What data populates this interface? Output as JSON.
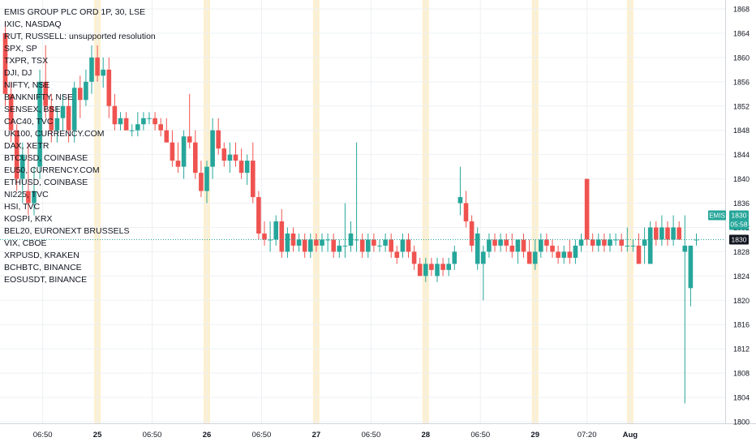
{
  "symbol_title": "EMIS GROUP PLC ORD 1P, 30, LSE",
  "compare_symbols": [
    "IXIC, NASDAQ",
    "RUT, RUSSELL: unsupported resolution",
    "SPX, SP",
    "TXPR, TSX",
    "DJI, DJ",
    "NIFTY, NSE",
    "BANKNIFTY, NSE",
    "SENSEX, BSE",
    "CAC40, TVC",
    "UK100, CURRENCY.COM",
    "DAX, XETR",
    "BTCUSD, COINBASE",
    "EU50, CURRENCY.COM",
    "ETHUSD, COINBASE",
    "NI225, TVC",
    "HSI, TVC",
    "KOSPI, KRX",
    "BEL20, EURONEXT BRUSSELS",
    "VIX, CBOE",
    "XRPUSD, KRAKEN",
    "BCHBTC, BINANCE",
    "EOSUSDT, BINANCE"
  ],
  "price_badge": {
    "symbol": "EMIS",
    "price": "1830",
    "countdown": "05:58",
    "last": "1830",
    "color": "#26a69a"
  },
  "colors": {
    "up": "#26a69a",
    "down": "#ef5350",
    "session_band": "#fdf0cf",
    "grid": "#eef0f3",
    "axis_text": "#131722"
  },
  "chart_data": {
    "type": "candlestick",
    "ylim": [
      1800,
      1869
    ],
    "y_ticks": [
      1800,
      1804,
      1808,
      1812,
      1816,
      1820,
      1824,
      1828,
      1832,
      1836,
      1840,
      1844,
      1848,
      1852,
      1856,
      1860,
      1864,
      1868
    ],
    "x_ticks": [
      {
        "label": "06:50",
        "bar": 6.5,
        "bold": false
      },
      {
        "label": "25",
        "bar": 16,
        "bold": true
      },
      {
        "label": "06:50",
        "bar": 25.5,
        "bold": false
      },
      {
        "label": "26",
        "bar": 35,
        "bold": true
      },
      {
        "label": "06:50",
        "bar": 44.5,
        "bold": false
      },
      {
        "label": "27",
        "bar": 54,
        "bold": true
      },
      {
        "label": "06:50",
        "bar": 63.5,
        "bold": false
      },
      {
        "label": "28",
        "bar": 73,
        "bold": true
      },
      {
        "label": "06:50",
        "bar": 82.5,
        "bold": false
      },
      {
        "label": "29",
        "bar": 92,
        "bold": true
      },
      {
        "label": "07:20",
        "bar": 101,
        "bold": false
      },
      {
        "label": "Aug",
        "bar": 108.5,
        "bold": true
      }
    ],
    "session_bars": [
      16,
      35,
      54,
      73,
      92,
      108.5
    ],
    "last_price": 1830,
    "candles": [
      [
        1864,
        1866,
        1852,
        1854
      ],
      [
        1854,
        1856,
        1846,
        1848
      ],
      [
        1848,
        1849,
        1838,
        1840
      ],
      [
        1840,
        1846,
        1836,
        1844
      ],
      [
        1838,
        1846,
        1834,
        1836
      ],
      [
        1836,
        1842,
        1834,
        1838
      ],
      [
        1842,
        1858,
        1840,
        1856
      ],
      [
        1856,
        1862,
        1850,
        1852
      ],
      [
        1852,
        1854,
        1846,
        1848
      ],
      [
        1848,
        1852,
        1846,
        1850
      ],
      [
        1850,
        1854,
        1848,
        1852
      ],
      [
        1852,
        1854,
        1846,
        1848
      ],
      [
        1848,
        1856,
        1846,
        1855
      ],
      [
        1855,
        1857,
        1850,
        1853
      ],
      [
        1853,
        1858,
        1852,
        1856
      ],
      [
        1856,
        1862,
        1854,
        1860
      ],
      [
        1860,
        1862,
        1856,
        1857
      ],
      [
        1857,
        1860,
        1855,
        1858
      ],
      [
        1858,
        1860,
        1850,
        1852
      ],
      [
        1852,
        1854,
        1848,
        1849
      ],
      [
        1849,
        1851,
        1848,
        1850
      ],
      [
        1850,
        1851,
        1848,
        1848
      ],
      [
        1848,
        1849,
        1847,
        1848
      ],
      [
        1848,
        1851,
        1847,
        1849
      ],
      [
        1849,
        1851,
        1848,
        1850
      ],
      [
        1850,
        1851,
        1849,
        1850
      ],
      [
        1850,
        1851,
        1848,
        1849
      ],
      [
        1849,
        1850,
        1847,
        1848
      ],
      [
        1848,
        1850,
        1846,
        1846
      ],
      [
        1846,
        1848,
        1842,
        1843
      ],
      [
        1843,
        1846,
        1841,
        1842
      ],
      [
        1842,
        1848,
        1840,
        1847
      ],
      [
        1847,
        1854,
        1845,
        1846
      ],
      [
        1846,
        1848,
        1840,
        1841
      ],
      [
        1841,
        1843,
        1837,
        1838
      ],
      [
        1838,
        1843,
        1836,
        1842
      ],
      [
        1842,
        1850,
        1840,
        1848
      ],
      [
        1848,
        1850,
        1844,
        1845
      ],
      [
        1845,
        1846,
        1842,
        1843
      ],
      [
        1843,
        1846,
        1841,
        1844
      ],
      [
        1844,
        1846,
        1842,
        1843
      ],
      [
        1843,
        1845,
        1840,
        1841
      ],
      [
        1841,
        1844,
        1839,
        1843
      ],
      [
        1843,
        1846,
        1836,
        1837
      ],
      [
        1837,
        1838,
        1830,
        1831
      ],
      [
        1831,
        1833,
        1829,
        1830
      ],
      [
        1830,
        1833,
        1828,
        1830
      ],
      [
        1830,
        1834,
        1829,
        1833
      ],
      [
        1833,
        1835,
        1827,
        1828
      ],
      [
        1828,
        1832,
        1827,
        1831
      ],
      [
        1831,
        1832,
        1828,
        1829
      ],
      [
        1829,
        1831,
        1828,
        1830
      ],
      [
        1830,
        1831,
        1827,
        1828
      ],
      [
        1828,
        1831,
        1827,
        1830
      ],
      [
        1830,
        1831,
        1828,
        1829
      ],
      [
        1829,
        1831,
        1828,
        1830
      ],
      [
        1830,
        1831,
        1828,
        1830
      ],
      [
        1830,
        1831,
        1827,
        1828
      ],
      [
        1828,
        1830,
        1827,
        1829
      ],
      [
        1829,
        1836,
        1827,
        1829
      ],
      [
        1829,
        1833,
        1828,
        1831
      ],
      [
        1830,
        1846,
        1828,
        1830
      ],
      [
        1830,
        1831,
        1827,
        1828
      ],
      [
        1828,
        1831,
        1827,
        1830
      ],
      [
        1830,
        1831,
        1828,
        1829
      ],
      [
        1829,
        1830,
        1828,
        1829
      ],
      [
        1829,
        1831,
        1828,
        1830
      ],
      [
        1830,
        1831,
        1827,
        1828
      ],
      [
        1828,
        1829,
        1826,
        1827
      ],
      [
        1828,
        1831,
        1827,
        1830
      ],
      [
        1830,
        1831,
        1827,
        1828
      ],
      [
        1828,
        1829,
        1825,
        1826
      ],
      [
        1826,
        1827,
        1824,
        1824
      ],
      [
        1824,
        1827,
        1823,
        1826
      ],
      [
        1826,
        1827,
        1824,
        1825
      ],
      [
        1824,
        1827,
        1823,
        1826
      ],
      [
        1826,
        1827,
        1824,
        1825
      ],
      [
        1825,
        1827,
        1824,
        1826
      ],
      [
        1826,
        1829,
        1825,
        1828
      ],
      [
        1836,
        1842,
        1834,
        1837
      ],
      [
        1836,
        1838,
        1832,
        1833
      ],
      [
        1833,
        1834,
        1828,
        1829
      ],
      [
        1826,
        1832,
        1825,
        1831
      ],
      [
        1826,
        1829,
        1820,
        1828
      ],
      [
        1828,
        1831,
        1827,
        1830
      ],
      [
        1830,
        1831,
        1828,
        1829
      ],
      [
        1829,
        1831,
        1828,
        1830
      ],
      [
        1830,
        1831,
        1828,
        1829
      ],
      [
        1829,
        1831,
        1827,
        1828
      ],
      [
        1828,
        1830,
        1826,
        1830
      ],
      [
        1830,
        1831,
        1827,
        1828
      ],
      [
        1828,
        1830,
        1826,
        1826
      ],
      [
        1826,
        1830,
        1825,
        1828
      ],
      [
        1828,
        1831,
        1827,
        1830
      ],
      [
        1830,
        1831,
        1828,
        1829
      ],
      [
        1829,
        1830,
        1827,
        1828
      ],
      [
        1828,
        1829,
        1826,
        1827
      ],
      [
        1827,
        1829,
        1826,
        1828
      ],
      [
        1828,
        1830,
        1826,
        1827
      ],
      [
        1827,
        1830,
        1826,
        1829
      ],
      [
        1829,
        1831,
        1828,
        1830
      ],
      [
        1840,
        1840,
        1829,
        1830
      ],
      [
        1830,
        1831,
        1828,
        1829
      ],
      [
        1829,
        1831,
        1828,
        1830
      ],
      [
        1830,
        1831,
        1828,
        1829
      ],
      [
        1829,
        1831,
        1828,
        1830
      ],
      [
        1830,
        1831,
        1829,
        1830
      ],
      [
        1830,
        1831,
        1828,
        1829
      ],
      [
        1829,
        1832,
        1828,
        1829
      ],
      [
        1829,
        1830,
        1828,
        1829
      ],
      [
        1829,
        1831,
        1826,
        1826
      ],
      [
        1829,
        1832,
        1826,
        1830
      ],
      [
        1826,
        1833,
        1826,
        1832
      ],
      [
        1832,
        1833,
        1829,
        1830
      ],
      [
        1830,
        1834,
        1829,
        1832
      ],
      [
        1832,
        1833,
        1829,
        1830
      ],
      [
        1830,
        1834,
        1829,
        1832
      ],
      [
        1832,
        1833,
        1830,
        1830
      ],
      [
        1828,
        1834,
        1803,
        1829
      ],
      [
        1822,
        1829,
        1819,
        1829
      ],
      [
        1830,
        1831,
        1829,
        1830
      ]
    ]
  }
}
